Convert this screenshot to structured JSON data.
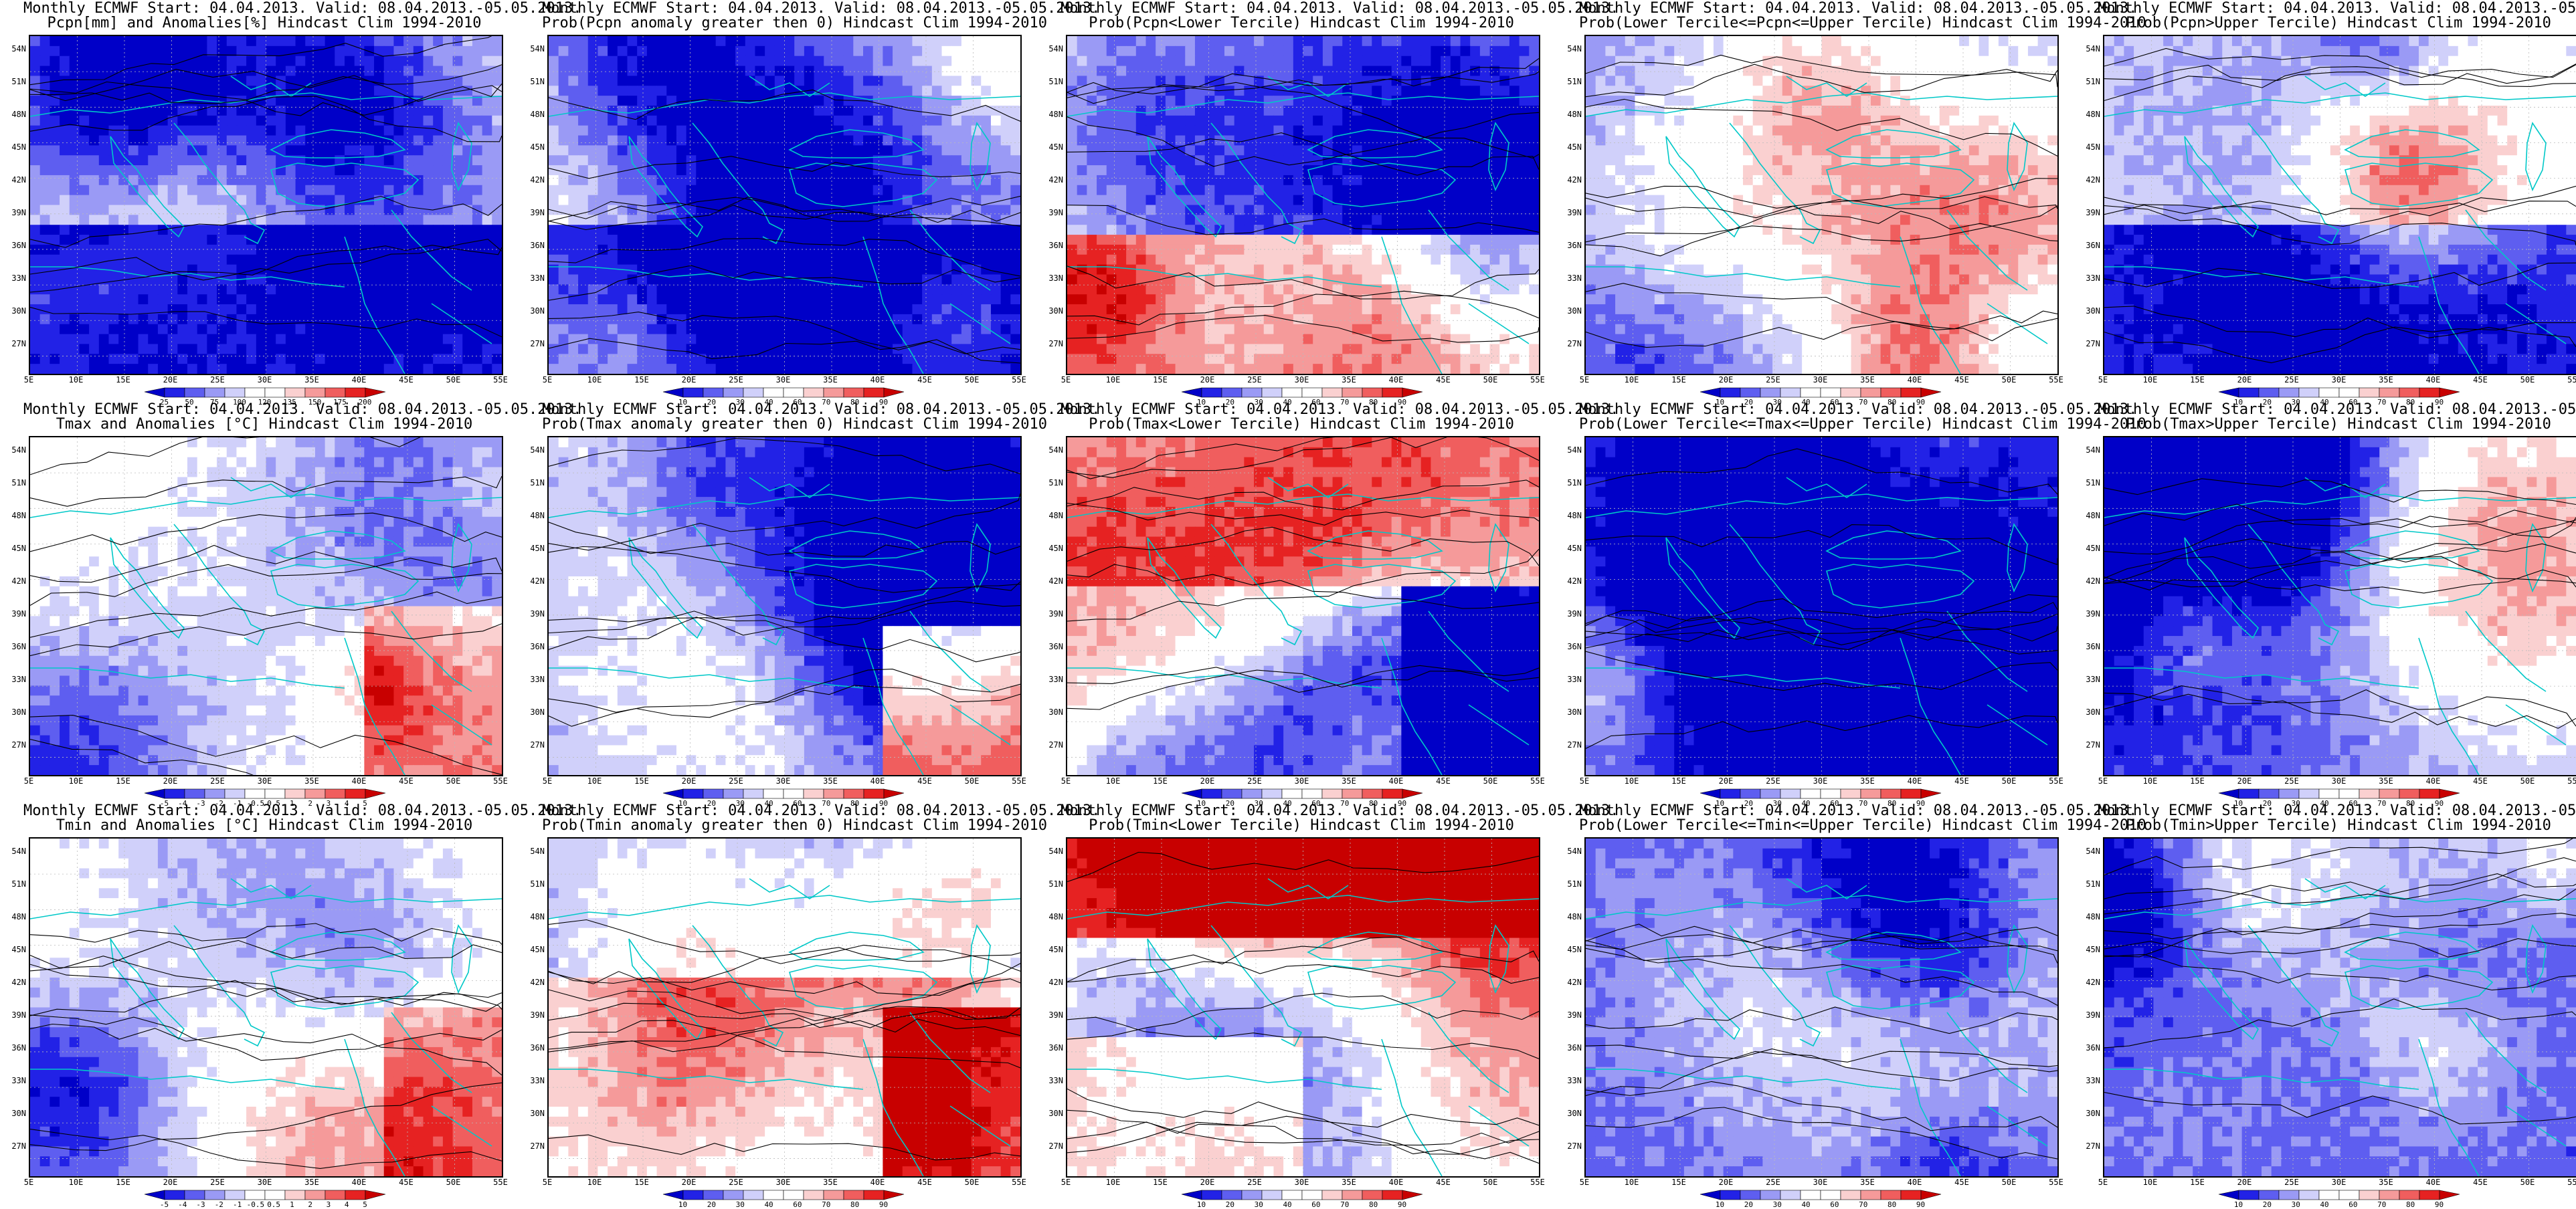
{
  "figure": {
    "common_line1": "Monthly ECMWF Start: 04.04.2013. Valid: 08.04.2013.-05.05.2013.",
    "lat_labels": [
      "54N",
      "51N",
      "48N",
      "45N",
      "42N",
      "39N",
      "36N",
      "33N",
      "30N",
      "27N"
    ],
    "lon_labels": [
      "5E",
      "10E",
      "15E",
      "20E",
      "25E",
      "30E",
      "35E",
      "40E",
      "45E",
      "50E",
      "55E"
    ],
    "panels": [
      {
        "line2": "Pcpn[mm] and Anomalies[%] Hindcast Clim 1994-2010",
        "cbar": "anom_pcpn"
      },
      {
        "line2": "Prob(Pcpn anomaly greater then 0) Hindcast Clim 1994-2010",
        "cbar": "prob"
      },
      {
        "line2": "Prob(Pcpn<Lower Tercile) Hindcast Clim 1994-2010",
        "cbar": "prob"
      },
      {
        "line2": "Prob(Lower Tercile<=Pcpn<=Upper Tercile) Hindcast Clim 1994-2010",
        "cbar": "prob"
      },
      {
        "line2": "Prob(Pcpn>Upper Tercile) Hindcast Clim 1994-2010",
        "cbar": "prob"
      },
      {
        "line2": "Tmax and Anomalies [°C] Hindcast Clim 1994-2010",
        "cbar": "anom_t"
      },
      {
        "line2": "Prob(Tmax anomaly greater then 0) Hindcast Clim 1994-2010",
        "cbar": "prob"
      },
      {
        "line2": "Prob(Tmax<Lower Tercile) Hindcast Clim 1994-2010",
        "cbar": "prob"
      },
      {
        "line2": "Prob(Lower Tercile<=Tmax<=Upper Tercile) Hindcast Clim 1994-2010",
        "cbar": "prob"
      },
      {
        "line2": "Prob(Tmax>Upper Tercile) Hindcast Clim 1994-2010",
        "cbar": "prob"
      },
      {
        "line2": "Tmin and Anomalies [°C] Hindcast Clim 1994-2010",
        "cbar": "anom_t"
      },
      {
        "line2": "Prob(Tmin anomaly greater then 0) Hindcast Clim 1994-2010",
        "cbar": "prob"
      },
      {
        "line2": "Prob(Tmin<Lower Tercile) Hindcast Clim 1994-2010",
        "cbar": "prob"
      },
      {
        "line2": "Prob(Lower Tercile<=Tmin<=Upper Tercile) Hindcast Clim 1994-2010",
        "cbar": "prob"
      },
      {
        "line2": "Prob(Tmin>Upper Tercile) Hindcast Clim 1994-2010",
        "cbar": "prob"
      }
    ],
    "colorbars": {
      "prob": {
        "labels": [
          "10",
          "20",
          "30",
          "40",
          "60",
          "70",
          "80",
          "90"
        ],
        "colors": [
          "#0000c8",
          "#2222e6",
          "#5e5ef0",
          "#9a9af5",
          "#d0d0fa",
          "#ffffff",
          "#ffffff",
          "#fad0d0",
          "#f59a9a",
          "#f05e5e",
          "#e62222",
          "#c80000"
        ]
      },
      "anom_pcpn": {
        "labels": [
          "25",
          "50",
          "75",
          "100",
          "120",
          "135",
          "150",
          "175",
          "200"
        ],
        "colors": [
          "#0000c8",
          "#2222e6",
          "#5e5ef0",
          "#9a9af5",
          "#d0d0fa",
          "#ffffff",
          "#ffffff",
          "#fad0d0",
          "#f59a9a",
          "#f05e5e",
          "#e62222",
          "#c80000"
        ]
      },
      "anom_t": {
        "labels": [
          "-5",
          "-4",
          "-3",
          "-2",
          "-1",
          "-0.5",
          "0.5",
          "1",
          "2",
          "3",
          "4",
          "5"
        ],
        "colors": [
          "#0000c8",
          "#2222e6",
          "#5e5ef0",
          "#9a9af5",
          "#d0d0fa",
          "#ffffff",
          "#ffffff",
          "#fad0d0",
          "#f59a9a",
          "#f05e5e",
          "#e62222",
          "#c80000"
        ]
      }
    },
    "colors": {
      "contour": "#000000",
      "coastline": "#00c8c8",
      "grid": "#bbbbbb"
    }
  }
}
